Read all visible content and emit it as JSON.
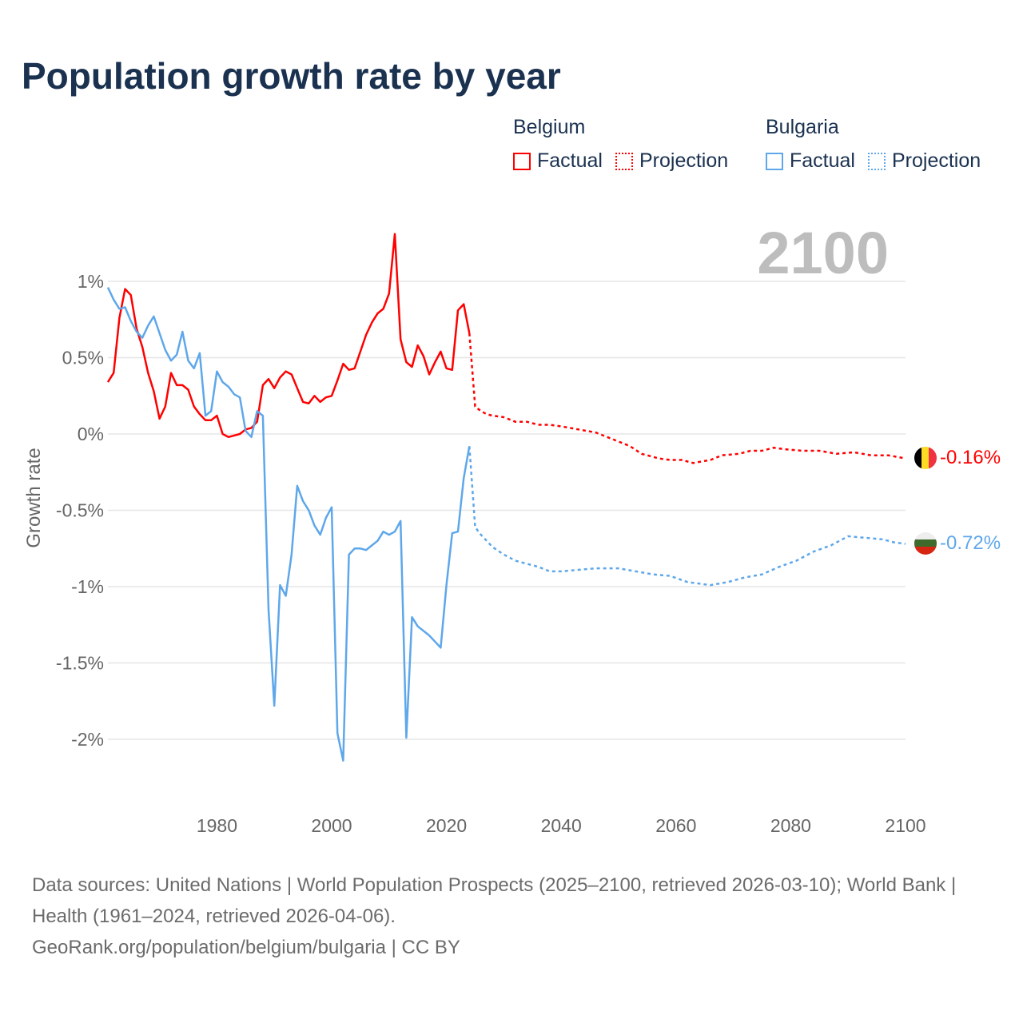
{
  "title": "Population growth rate by year",
  "legend": [
    {
      "country": "Belgium",
      "factual": "Factual",
      "projection": "Projection",
      "color": "#ff0000"
    },
    {
      "country": "Bulgaria",
      "factual": "Factual",
      "projection": "Projection",
      "color": "#5ea7ea"
    }
  ],
  "footer": {
    "sources": "Data sources: United Nations | World Population Prospects (2025–2100, retrieved 2026-03-10); World Bank | Health (1961–2024, retrieved 2026-04-06).",
    "link": "GeoRank.org/population/belgium/bulgaria | CC BY"
  },
  "chart_data": {
    "type": "line",
    "title": "Population growth rate by year",
    "ylabel": "Growth rate",
    "xlabel": "",
    "current_year_label": "2100",
    "xlim": [
      1961,
      2100
    ],
    "ylim": [
      -2.3,
      1.3
    ],
    "grid": true,
    "yticks": [
      1,
      0.5,
      0,
      -0.5,
      -1,
      -1.5,
      -2
    ],
    "ytick_labels": [
      "1%",
      "0.5%",
      "0%",
      "-0.5%",
      "-1%",
      "-1.5%",
      "-2%"
    ],
    "xticks": [
      1980,
      2000,
      2020,
      2040,
      2060,
      2080,
      2100
    ],
    "xtick_labels": [
      "1980",
      "2000",
      "2020",
      "2040",
      "2060",
      "2080",
      "2100"
    ],
    "legend_position": "top-right",
    "series": [
      {
        "name": "Belgium",
        "color": "#ff0000",
        "end_label": "-0.16%",
        "flag": "belgium",
        "factual": {
          "start_year": 1961,
          "values": [
            0.34,
            0.4,
            0.76,
            0.95,
            0.91,
            0.69,
            0.57,
            0.4,
            0.28,
            0.1,
            0.18,
            0.4,
            0.32,
            0.32,
            0.29,
            0.18,
            0.13,
            0.09,
            0.09,
            0.12,
            0.0,
            -0.02,
            -0.01,
            0.0,
            0.03,
            0.04,
            0.08,
            0.32,
            0.36,
            0.3,
            0.37,
            0.41,
            0.39,
            0.3,
            0.21,
            0.2,
            0.25,
            0.21,
            0.24,
            0.25,
            0.35,
            0.46,
            0.42,
            0.43,
            0.54,
            0.65,
            0.73,
            0.79,
            0.82,
            0.92,
            1.31,
            0.62,
            0.47,
            0.44,
            0.58,
            0.51,
            0.39,
            0.47,
            0.54,
            0.43,
            0.42,
            0.81,
            0.85,
            0.66
          ]
        },
        "projection": {
          "x": [
            2024,
            2025,
            2026,
            2027,
            2028,
            2030,
            2032,
            2034,
            2036,
            2038,
            2040,
            2043,
            2046,
            2048,
            2050,
            2052,
            2054,
            2057,
            2059,
            2061,
            2063,
            2066,
            2068,
            2071,
            2073,
            2075,
            2077,
            2079,
            2082,
            2085,
            2088,
            2091,
            2094,
            2097,
            2100
          ],
          "y": [
            0.66,
            0.18,
            0.15,
            0.13,
            0.12,
            0.11,
            0.08,
            0.08,
            0.06,
            0.06,
            0.05,
            0.03,
            0.01,
            -0.02,
            -0.05,
            -0.08,
            -0.13,
            -0.16,
            -0.17,
            -0.17,
            -0.19,
            -0.17,
            -0.14,
            -0.13,
            -0.11,
            -0.11,
            -0.09,
            -0.1,
            -0.11,
            -0.11,
            -0.13,
            -0.12,
            -0.14,
            -0.14,
            -0.16
          ]
        }
      },
      {
        "name": "Bulgaria",
        "color": "#5ea7ea",
        "end_label": "-0.72%",
        "flag": "bulgaria",
        "factual": {
          "start_year": 1961,
          "values": [
            0.96,
            0.88,
            0.82,
            0.83,
            0.74,
            0.67,
            0.63,
            0.71,
            0.77,
            0.66,
            0.55,
            0.48,
            0.52,
            0.67,
            0.48,
            0.43,
            0.53,
            0.12,
            0.15,
            0.41,
            0.34,
            0.31,
            0.26,
            0.24,
            0.02,
            -0.02,
            0.15,
            0.12,
            -1.15,
            -1.78,
            -0.99,
            -1.06,
            -0.79,
            -0.34,
            -0.44,
            -0.5,
            -0.6,
            -0.66,
            -0.55,
            -0.48,
            -1.96,
            -2.14,
            -0.79,
            -0.75,
            -0.75,
            -0.76,
            -0.73,
            -0.7,
            -0.64,
            -0.66,
            -0.64,
            -0.57,
            -1.99,
            -1.2,
            -1.26,
            -1.29,
            -1.32,
            -1.36,
            -1.4,
            -0.99,
            -0.65,
            -0.64,
            -0.29,
            -0.08
          ]
        },
        "projection": {
          "x": [
            2024,
            2025,
            2026,
            2027,
            2028,
            2030,
            2032,
            2034,
            2036,
            2038,
            2040,
            2043,
            2046,
            2050,
            2053,
            2056,
            2059,
            2062,
            2066,
            2069,
            2072,
            2075,
            2078,
            2081,
            2084,
            2087,
            2090,
            2093,
            2096,
            2098,
            2100
          ],
          "y": [
            -0.08,
            -0.61,
            -0.66,
            -0.7,
            -0.74,
            -0.79,
            -0.83,
            -0.85,
            -0.87,
            -0.9,
            -0.9,
            -0.89,
            -0.88,
            -0.88,
            -0.9,
            -0.92,
            -0.93,
            -0.97,
            -0.99,
            -0.97,
            -0.94,
            -0.92,
            -0.87,
            -0.83,
            -0.77,
            -0.73,
            -0.67,
            -0.68,
            -0.69,
            -0.71,
            -0.72
          ]
        }
      }
    ]
  }
}
